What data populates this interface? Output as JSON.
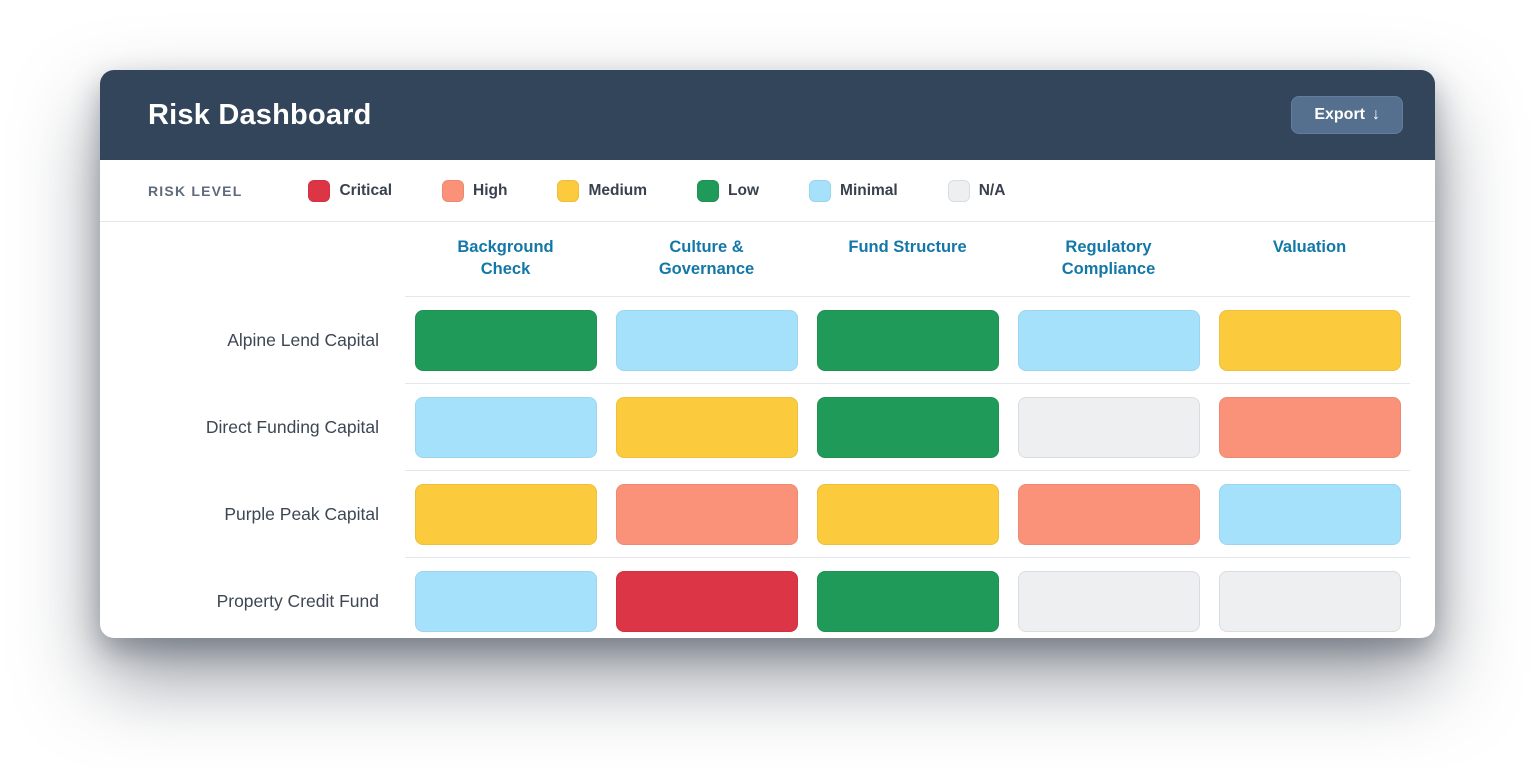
{
  "header": {
    "title": "Risk Dashboard",
    "export_label": "Export",
    "export_icon": "↓"
  },
  "legend": {
    "label": "RISK LEVEL",
    "items": [
      {
        "label": "Critical",
        "level": "critical",
        "color": "#dc3545"
      },
      {
        "label": "High",
        "level": "high",
        "color": "#fa9179"
      },
      {
        "label": "Medium",
        "level": "medium",
        "color": "#fbca3d"
      },
      {
        "label": "Low",
        "level": "low",
        "color": "#1f9a58"
      },
      {
        "label": "Minimal",
        "level": "minimal",
        "color": "#a5e1fa"
      },
      {
        "label": "N/A",
        "level": "na",
        "color": "#edeff1"
      }
    ]
  },
  "matrix": {
    "columns": [
      "Background Check",
      "Culture & Governance",
      "Fund Structure",
      "Regulatory Compliance",
      "Valuation"
    ],
    "rows": [
      {
        "label": "Alpine Lend Capital",
        "cells": [
          "low",
          "minimal",
          "low",
          "minimal",
          "medium"
        ]
      },
      {
        "label": "Direct Funding Capital",
        "cells": [
          "minimal",
          "medium",
          "low",
          "na",
          "high"
        ]
      },
      {
        "label": "Purple Peak Capital",
        "cells": [
          "medium",
          "high",
          "medium",
          "high",
          "minimal"
        ]
      },
      {
        "label": "Property Credit Fund",
        "cells": [
          "minimal",
          "critical",
          "low",
          "na",
          "na"
        ]
      }
    ]
  },
  "chart_data": {
    "type": "heatmap",
    "title": "Risk Dashboard",
    "x_categories": [
      "Background Check",
      "Culture & Governance",
      "Fund Structure",
      "Regulatory Compliance",
      "Valuation"
    ],
    "y_categories": [
      "Alpine Lend Capital",
      "Direct Funding Capital",
      "Purple Peak Capital",
      "Property Credit Fund"
    ],
    "legend_entries": [
      "Critical",
      "High",
      "Medium",
      "Low",
      "Minimal",
      "N/A"
    ],
    "values": [
      [
        "Low",
        "Minimal",
        "Low",
        "Minimal",
        "Medium"
      ],
      [
        "Minimal",
        "Medium",
        "Low",
        "N/A",
        "High"
      ],
      [
        "Medium",
        "High",
        "Medium",
        "High",
        "Minimal"
      ],
      [
        "Minimal",
        "Critical",
        "Low",
        "N/A",
        "N/A"
      ]
    ],
    "legend_position": "top"
  },
  "colors": {
    "header_bg": "#33455a",
    "export_button_bg": "#54708e",
    "column_header_text": "#1378a8",
    "critical": "#dc3545",
    "high": "#fa9179",
    "medium": "#fbca3d",
    "low": "#1f9a58",
    "minimal": "#a5e1fa",
    "na": "#edeff1"
  }
}
